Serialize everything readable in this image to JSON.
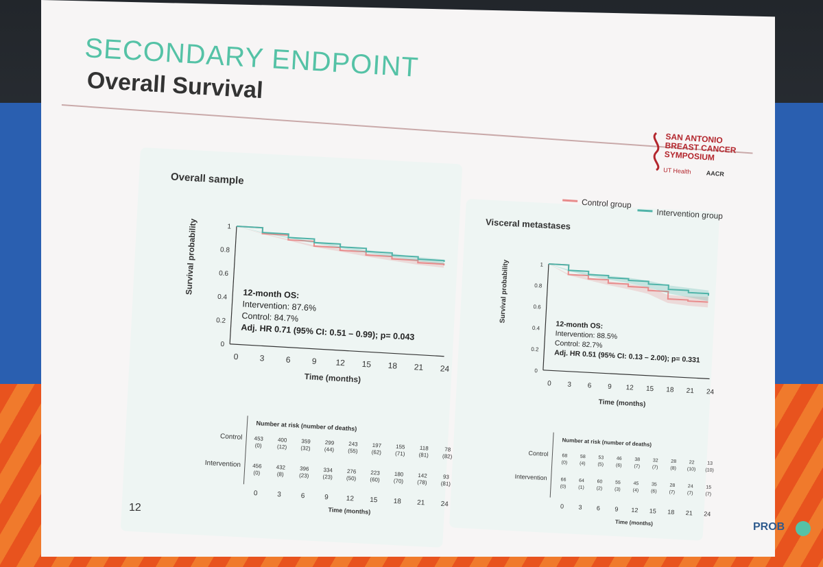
{
  "slide": {
    "section_title": "SECONDARY ENDPOINT",
    "main_title": "Overall Survival",
    "page_number": "12",
    "footer_logo": "PROB",
    "logo": {
      "line1": "SAN ANTONIO",
      "line2": "BREAST CANCER",
      "line3": "SYMPOSIUM",
      "partner1": "UT Health",
      "partner2": "AACR"
    },
    "legend": {
      "control": "Control group",
      "intervention": "Intervention group"
    },
    "colors": {
      "control": "#e88b8b",
      "intervention": "#4fb3a8",
      "accent": "#55c2a6"
    }
  },
  "chart_data": [
    {
      "type": "line",
      "title": "Overall sample",
      "xlabel": "Time (months)",
      "ylabel": "Survival probability",
      "xlim": [
        0,
        24
      ],
      "ylim": [
        0,
        1
      ],
      "x_ticks": [
        "0",
        "3",
        "6",
        "9",
        "12",
        "15",
        "18",
        "21",
        "24"
      ],
      "y_ticks": [
        "0",
        "0.2",
        "0.4",
        "0.6",
        "0.8",
        "1"
      ],
      "series": [
        {
          "name": "Control group",
          "x": [
            0,
            3,
            6,
            9,
            12,
            15,
            18,
            21,
            24
          ],
          "values": [
            1.0,
            0.95,
            0.91,
            0.87,
            0.847,
            0.82,
            0.8,
            0.78,
            0.77
          ]
        },
        {
          "name": "Intervention group",
          "x": [
            0,
            3,
            6,
            9,
            12,
            15,
            18,
            21,
            24
          ],
          "values": [
            1.0,
            0.96,
            0.93,
            0.9,
            0.876,
            0.85,
            0.83,
            0.81,
            0.8
          ]
        }
      ],
      "annotation": {
        "heading": "12-month OS:",
        "line1": "Intervention: 87.6%",
        "line2": "Control: 84.7%",
        "line3": "Adj. HR 0.71 (95% CI: 0.51 – 0.99); p= 0.043"
      },
      "risk_table": {
        "title": "Number at risk (number of deaths)",
        "xlabel": "Time (months)",
        "rows": [
          {
            "label": "Control",
            "values": [
              "453",
              "400",
              "359",
              "299",
              "243",
              "197",
              "155",
              "118",
              "78"
            ],
            "deaths": [
              "(0)",
              "(12)",
              "(32)",
              "(44)",
              "(55)",
              "(62)",
              "(71)",
              "(81)",
              "(82)"
            ]
          },
          {
            "label": "Intervention",
            "values": [
              "456",
              "432",
              "396",
              "334",
              "276",
              "223",
              "180",
              "142",
              "93"
            ],
            "deaths": [
              "(0)",
              "(8)",
              "(23)",
              "(23)",
              "(50)",
              "(60)",
              "(70)",
              "(78)",
              "(81)"
            ]
          }
        ]
      }
    },
    {
      "type": "line",
      "title": "Visceral metastases",
      "xlabel": "Time (months)",
      "ylabel": "Survival probability",
      "xlim": [
        0,
        24
      ],
      "ylim": [
        0,
        1
      ],
      "x_ticks": [
        "0",
        "3",
        "6",
        "9",
        "12",
        "15",
        "18",
        "21",
        "24"
      ],
      "y_ticks": [
        "0",
        "0.2",
        "0.4",
        "0.6",
        "0.8",
        "1"
      ],
      "series": [
        {
          "name": "Control group",
          "x": [
            0,
            3,
            6,
            9,
            12,
            15,
            18,
            21,
            24
          ],
          "values": [
            1.0,
            0.91,
            0.88,
            0.85,
            0.827,
            0.8,
            0.73,
            0.72,
            0.72
          ]
        },
        {
          "name": "Intervention group",
          "x": [
            0,
            3,
            6,
            9,
            12,
            15,
            18,
            21,
            24
          ],
          "values": [
            1.0,
            0.95,
            0.92,
            0.9,
            0.885,
            0.86,
            0.82,
            0.8,
            0.78
          ]
        }
      ],
      "annotation": {
        "heading": "12-month OS:",
        "line1": "Intervention: 88.5%",
        "line2": "Control: 82.7%",
        "line3": "Adj. HR 0.51 (95% CI: 0.13 – 2.00); p= 0.331"
      },
      "risk_table": {
        "title": "Number at risk (number of deaths)",
        "xlabel": "Time (months)",
        "rows": [
          {
            "label": "Control",
            "values": [
              "68",
              "58",
              "53",
              "46",
              "38",
              "32",
              "28",
              "22",
              "13"
            ],
            "deaths": [
              "(0)",
              "(4)",
              "(5)",
              "(6)",
              "(7)",
              "(7)",
              "(8)",
              "(10)",
              "(10)"
            ]
          },
          {
            "label": "Intervention",
            "values": [
              "66",
              "64",
              "60",
              "55",
              "45",
              "35",
              "28",
              "24",
              "15"
            ],
            "deaths": [
              "(0)",
              "(1)",
              "(2)",
              "(3)",
              "(4)",
              "(6)",
              "(7)",
              "(7)",
              "(7)"
            ]
          }
        ]
      }
    }
  ]
}
